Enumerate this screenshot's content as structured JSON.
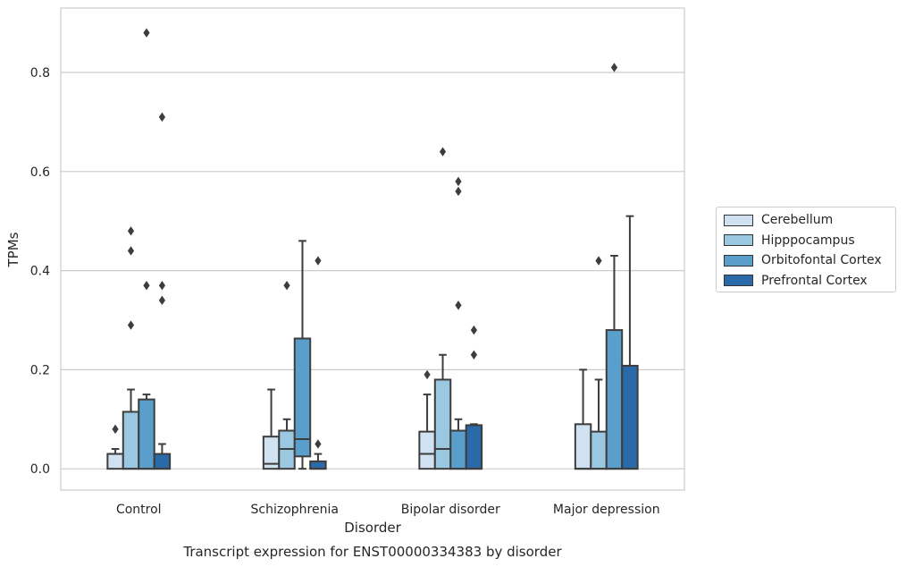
{
  "chart_data": {
    "type": "box",
    "title": "",
    "caption": "Transcript expression for ENST00000334383 by disorder",
    "xlabel": "Disorder",
    "ylabel": "TPMs",
    "ylim": [
      -0.043,
      0.93
    ],
    "yticks": [
      "0.0",
      "0.2",
      "0.4",
      "0.6",
      "0.8"
    ],
    "ytick_values": [
      0.0,
      0.2,
      0.4,
      0.6,
      0.8
    ],
    "grid": "horizontal",
    "legend_position": "right",
    "categories": [
      "Control",
      "Schizophrenia",
      "Bipolar disorder",
      "Major depression"
    ],
    "series": [
      {
        "name": "Cerebellum",
        "color": "#d0e1f2",
        "boxes": [
          {
            "q1": 0.0,
            "median": 0.03,
            "q3": 0.03,
            "whisker_low": 0.0,
            "whisker_high": 0.04,
            "outliers": [
              0.08
            ]
          },
          {
            "q1": 0.0,
            "median": 0.01,
            "q3": 0.065,
            "whisker_low": 0.0,
            "whisker_high": 0.16,
            "outliers": []
          },
          {
            "q1": 0.0,
            "median": 0.03,
            "q3": 0.075,
            "whisker_low": 0.0,
            "whisker_high": 0.15,
            "outliers": [
              0.19
            ]
          },
          {
            "q1": 0.0,
            "median": 0.0,
            "q3": 0.09,
            "whisker_low": 0.0,
            "whisker_high": 0.2,
            "outliers": []
          }
        ]
      },
      {
        "name": "Hipppocampus",
        "color": "#9ac8e0",
        "boxes": [
          {
            "q1": 0.0,
            "median": 0.0,
            "q3": 0.115,
            "whisker_low": 0.0,
            "whisker_high": 0.16,
            "outliers": [
              0.29,
              0.44,
              0.48
            ]
          },
          {
            "q1": 0.0,
            "median": 0.04,
            "q3": 0.077,
            "whisker_low": 0.0,
            "whisker_high": 0.1,
            "outliers": [
              0.37
            ]
          },
          {
            "q1": 0.0,
            "median": 0.04,
            "q3": 0.18,
            "whisker_low": 0.0,
            "whisker_high": 0.23,
            "outliers": [
              0.64
            ]
          },
          {
            "q1": 0.0,
            "median": 0.0,
            "q3": 0.075,
            "whisker_low": 0.0,
            "whisker_high": 0.18,
            "outliers": [
              0.42
            ]
          }
        ]
      },
      {
        "name": "Orbitofontal Cortex",
        "color": "#5a9ecc",
        "boxes": [
          {
            "q1": 0.0,
            "median": 0.0,
            "q3": 0.14,
            "whisker_low": 0.0,
            "whisker_high": 0.15,
            "outliers": [
              0.37,
              0.88
            ]
          },
          {
            "q1": 0.025,
            "median": 0.06,
            "q3": 0.263,
            "whisker_low": 0.0,
            "whisker_high": 0.46,
            "outliers": []
          },
          {
            "q1": 0.0,
            "median": 0.0,
            "q3": 0.077,
            "whisker_low": 0.0,
            "whisker_high": 0.1,
            "outliers": [
              0.33,
              0.56,
              0.58
            ]
          },
          {
            "q1": 0.0,
            "median": 0.0,
            "q3": 0.28,
            "whisker_low": 0.0,
            "whisker_high": 0.43,
            "outliers": [
              0.81
            ]
          }
        ]
      },
      {
        "name": "Prefrontal Cortex",
        "color": "#2a6aa8",
        "boxes": [
          {
            "q1": 0.0,
            "median": 0.0,
            "q3": 0.03,
            "whisker_low": 0.0,
            "whisker_high": 0.05,
            "outliers": [
              0.34,
              0.37,
              0.71
            ]
          },
          {
            "q1": 0.0,
            "median": 0.0,
            "q3": 0.015,
            "whisker_low": 0.0,
            "whisker_high": 0.03,
            "outliers": [
              0.05,
              0.42
            ]
          },
          {
            "q1": 0.0,
            "median": 0.0,
            "q3": 0.088,
            "whisker_low": 0.0,
            "whisker_high": 0.09,
            "outliers": [
              0.23,
              0.28
            ]
          },
          {
            "q1": 0.0,
            "median": 0.0,
            "q3": 0.208,
            "whisker_low": 0.0,
            "whisker_high": 0.51,
            "outliers": []
          }
        ]
      }
    ]
  }
}
